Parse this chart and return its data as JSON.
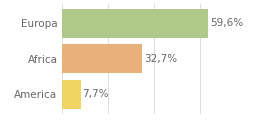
{
  "categories": [
    "Europa",
    "Africa",
    "America"
  ],
  "values": [
    59.6,
    32.7,
    7.7
  ],
  "labels": [
    "59,6%",
    "32,7%",
    "7,7%"
  ],
  "bar_colors": [
    "#aec98a",
    "#e8b07a",
    "#f0d464"
  ],
  "background_color": "#ffffff",
  "xlim": [
    0,
    75
  ],
  "bar_height": 0.82,
  "label_fontsize": 7.5,
  "category_fontsize": 7.5,
  "grid_color": "#dddddd",
  "text_color": "#666666"
}
